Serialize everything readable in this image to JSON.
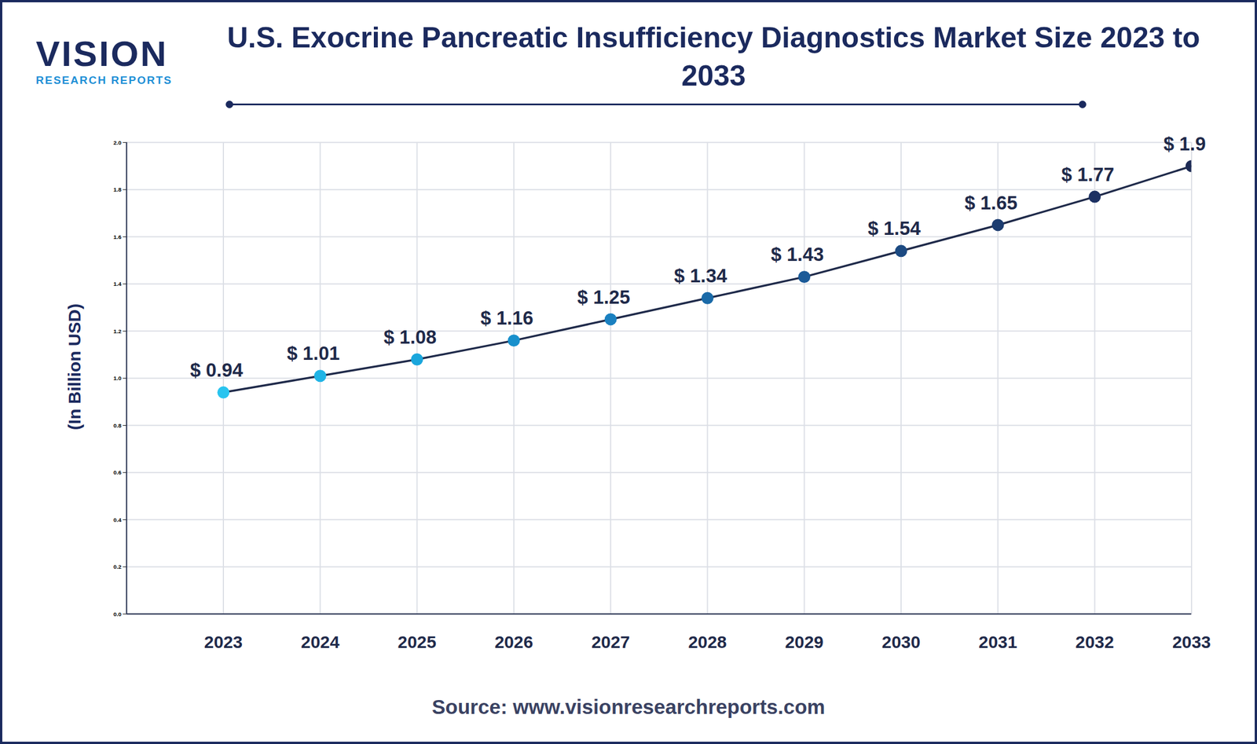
{
  "chart_data": {
    "type": "line",
    "title": "U.S. Exocrine Pancreatic Insufficiency Diagnostics Market Size 2023 to 2033",
    "y_label": "(In Billion USD)",
    "source": "Source: www.visionresearchreports.com",
    "logo_name": "VISION",
    "logo_tagline": "RESEARCH REPORTS",
    "x": [
      2023,
      2024,
      2025,
      2026,
      2027,
      2028,
      2029,
      2030,
      2031,
      2032,
      2033
    ],
    "values": [
      0.94,
      1.01,
      1.08,
      1.16,
      1.25,
      1.34,
      1.43,
      1.54,
      1.65,
      1.77,
      1.9
    ],
    "value_labels": [
      "$ 0.94",
      "$ 1.01",
      "$ 1.08",
      "$ 1.16",
      "$ 1.25",
      "$ 1.34",
      "$ 1.43",
      "$ 1.54",
      "$ 1.65",
      "$ 1.77",
      "$ 1.9"
    ],
    "color": "#1f2a4a",
    "colors": [
      "#29c4ef",
      "#20b4e6",
      "#1aa6dc",
      "#1890cc",
      "#1a80c0",
      "#1a6aa8",
      "#1b5a98",
      "#1c4a82",
      "#1c3c70",
      "#1c3062",
      "#1c2a54"
    ],
    "marker": "circle",
    "xlim": [
      2022,
      2033
    ],
    "xticks": [
      2023,
      2024,
      2025,
      2026,
      2027,
      2028,
      2029,
      2030,
      2031,
      2032,
      2033
    ],
    "ylim": [
      0,
      2
    ],
    "yticks": [
      0,
      0.2,
      0.4,
      0.6,
      0.8,
      1,
      1.2,
      1.4,
      1.6,
      1.8,
      2
    ],
    "grid": true,
    "data_labels": true,
    "tick_labels": "x"
  }
}
